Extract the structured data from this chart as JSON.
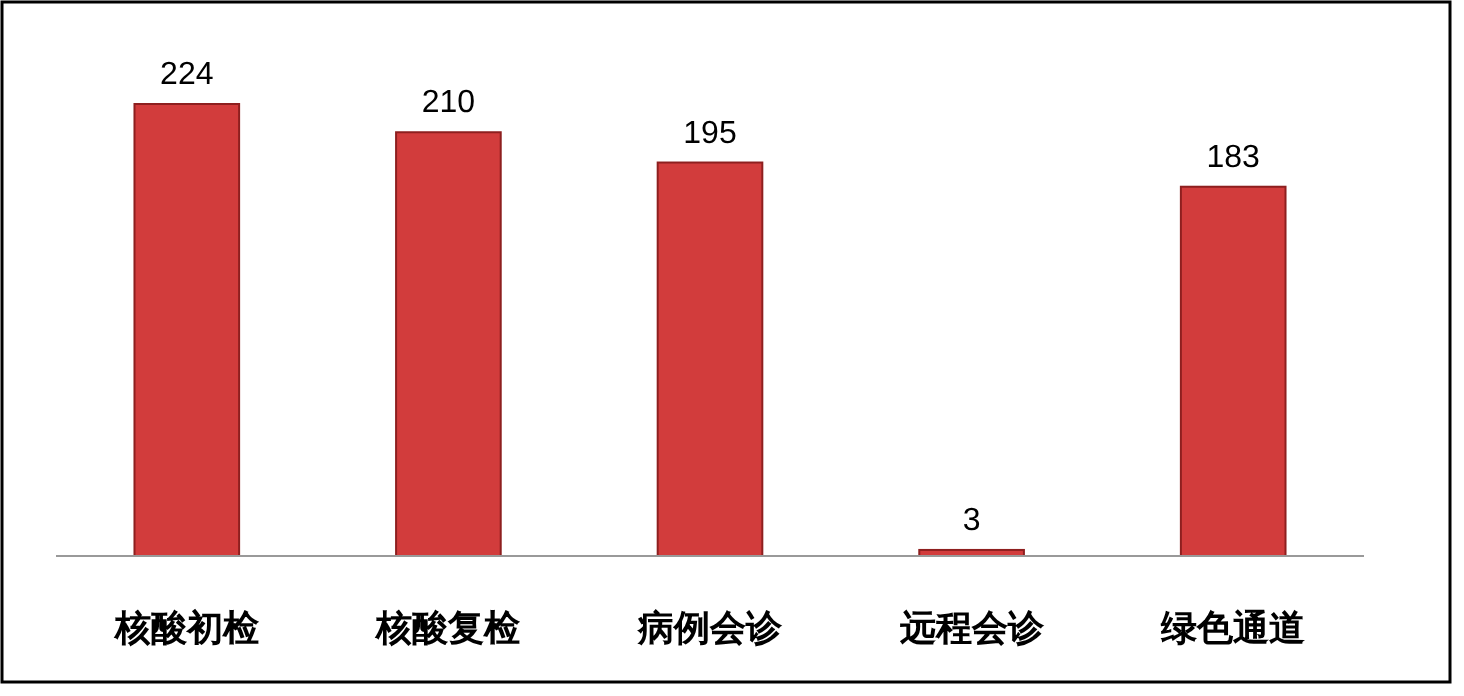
{
  "chart_data": {
    "type": "bar",
    "categories": [
      "核酸初检",
      "核酸复检",
      "病例会诊",
      "远程会诊",
      "绿色通道"
    ],
    "values": [
      224,
      210,
      195,
      3,
      183
    ],
    "color": "#d23c3c",
    "data_labels": true
  }
}
